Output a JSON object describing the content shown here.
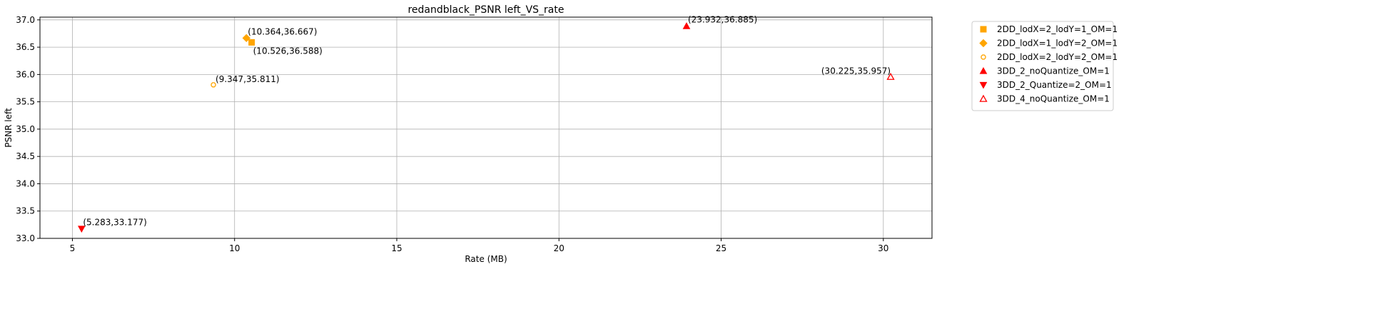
{
  "chart_data": {
    "type": "scatter",
    "title": "redandblack_PSNR left_VS_rate",
    "xlabel": "Rate (MB)",
    "ylabel": "PSNR left",
    "xlim": [
      4.0,
      31.5
    ],
    "ylim": [
      33.0,
      37.05
    ],
    "xticks": [
      5,
      10,
      15,
      20,
      25,
      30
    ],
    "yticks": [
      33.0,
      33.5,
      34.0,
      34.5,
      35.0,
      35.5,
      36.0,
      36.5,
      37.0
    ],
    "grid": true,
    "legend_position": "outside-right-top",
    "series": [
      {
        "name": "2DD_lodX=2_lodY=1_OM=1",
        "marker": "square",
        "color": "#ffa500",
        "fill": "filled",
        "points": [
          {
            "x": 10.526,
            "y": 36.588,
            "label": "(10.526,36.588)"
          }
        ]
      },
      {
        "name": "2DD_lodX=1_lodY=2_OM=1",
        "marker": "diamond",
        "color": "#ffa500",
        "fill": "filled",
        "points": [
          {
            "x": 10.364,
            "y": 36.667,
            "label": "(10.364,36.667)"
          }
        ]
      },
      {
        "name": "2DD_lodX=2_lodY=2_OM=1",
        "marker": "octagon",
        "color": "#ffa500",
        "fill": "hollow",
        "points": [
          {
            "x": 9.347,
            "y": 35.811,
            "label": "(9.347,35.811)"
          }
        ]
      },
      {
        "name": "3DD_2_noQuantize_OM=1",
        "marker": "triangle-up",
        "color": "#ff0000",
        "fill": "filled",
        "points": [
          {
            "x": 23.932,
            "y": 36.885,
            "label": "(23.932,36.885)"
          }
        ]
      },
      {
        "name": "3DD_2_Quantize=2_OM=1",
        "marker": "triangle-down",
        "color": "#ff0000",
        "fill": "filled",
        "points": [
          {
            "x": 5.283,
            "y": 33.177,
            "label": "(5.283,33.177)"
          }
        ]
      },
      {
        "name": "3DD_4_noQuantize_OM=1",
        "marker": "triangle-up",
        "color": "#ff0000",
        "fill": "hollow",
        "points": [
          {
            "x": 30.225,
            "y": 35.957,
            "label": "(30.225,35.957)"
          }
        ]
      }
    ]
  }
}
